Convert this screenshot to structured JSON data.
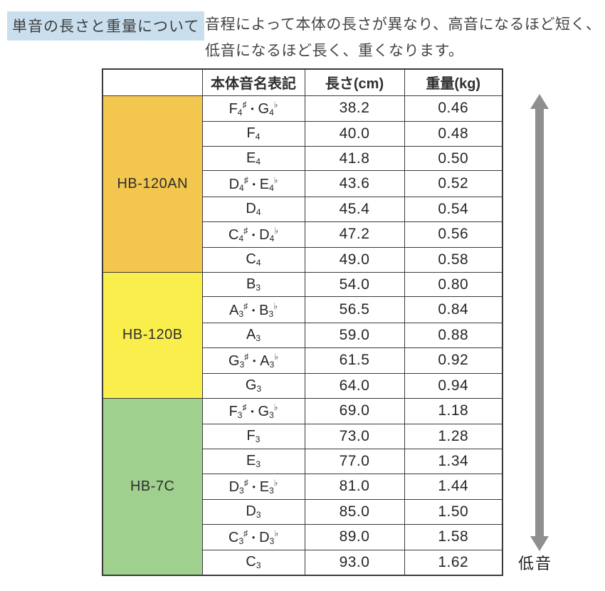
{
  "title": "単音の長さと重量について",
  "description": {
    "line1": "音程によって本体の長さが異なり、高音になるほど短く、",
    "line2": "低音になるほど長く、重くなります。"
  },
  "table": {
    "headers": {
      "model": "",
      "note": "本体音名表記",
      "length": "長さ(cm)",
      "weight": "重量(kg)"
    },
    "groups": [
      {
        "model": "HB-120AN",
        "color": "#f3c64e",
        "rows": [
          {
            "note": "F4♯・G4♭",
            "length": "38.2",
            "weight": "0.46"
          },
          {
            "note": "F4",
            "length": "40.0",
            "weight": "0.48"
          },
          {
            "note": "E4",
            "length": "41.8",
            "weight": "0.50"
          },
          {
            "note": "D4♯・E4♭",
            "length": "43.6",
            "weight": "0.52"
          },
          {
            "note": "D4",
            "length": "45.4",
            "weight": "0.54"
          },
          {
            "note": "C4♯・D4♭",
            "length": "47.2",
            "weight": "0.56"
          },
          {
            "note": "C4",
            "length": "49.0",
            "weight": "0.58"
          }
        ]
      },
      {
        "model": "HB-120B",
        "color": "#faee4d",
        "rows": [
          {
            "note": "B3",
            "length": "54.0",
            "weight": "0.80"
          },
          {
            "note": "A3♯・B3♭",
            "length": "56.5",
            "weight": "0.84"
          },
          {
            "note": "A3",
            "length": "59.0",
            "weight": "0.88"
          },
          {
            "note": "G3♯・A3♭",
            "length": "61.5",
            "weight": "0.92"
          },
          {
            "note": "G3",
            "length": "64.0",
            "weight": "0.94"
          }
        ]
      },
      {
        "model": "HB-7C",
        "color": "#9fd08d",
        "rows": [
          {
            "note": "F3♯・G3♭",
            "length": "69.0",
            "weight": "1.18"
          },
          {
            "note": "F3",
            "length": "73.0",
            "weight": "1.28"
          },
          {
            "note": "E3",
            "length": "77.0",
            "weight": "1.34"
          },
          {
            "note": "D3♯・E3♭",
            "length": "81.0",
            "weight": "1.44"
          },
          {
            "note": "D3",
            "length": "85.0",
            "weight": "1.50"
          },
          {
            "note": "C3♯・D3♭",
            "length": "89.0",
            "weight": "1.58"
          },
          {
            "note": "C3",
            "length": "93.0",
            "weight": "1.62"
          }
        ]
      }
    ]
  },
  "arrow": {
    "color": "#8f8f8f",
    "bottom_label": "低音"
  },
  "colors": {
    "title_highlight_bg": "#c9dfee",
    "table_border": "#3a3a3a",
    "text": "#262626"
  }
}
